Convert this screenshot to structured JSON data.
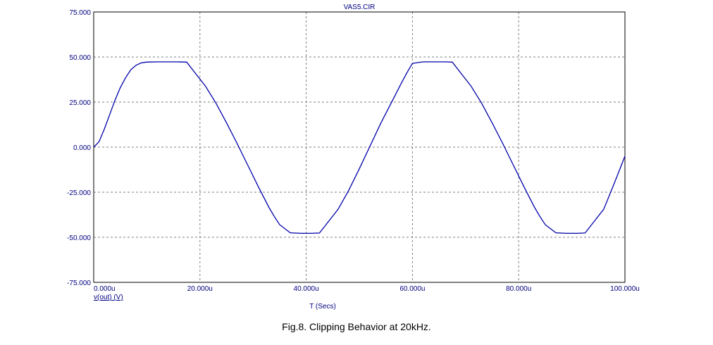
{
  "chart_data": {
    "type": "line",
    "title": "VAS5.CIR",
    "xlabel": "T (Secs)",
    "series_label": "v(out) (V)",
    "xlim": [
      0,
      100
    ],
    "ylim": [
      -75,
      75
    ],
    "x_ticks": [
      0,
      20,
      40,
      60,
      80,
      100
    ],
    "x_tick_labels": [
      "0.000u",
      "20.000u",
      "40.000u",
      "60.000u",
      "80.000u",
      "100.000u"
    ],
    "y_ticks": [
      75,
      50,
      25,
      0,
      -25,
      -50,
      -75
    ],
    "y_tick_labels": [
      "75.000",
      "50.000",
      "25.000",
      "0.000",
      "-25.000",
      "-50.000",
      "-75.000"
    ],
    "grid": true,
    "series": [
      {
        "name": "v(out)",
        "color": "#0000aa",
        "x": [
          0,
          1,
          2,
          3,
          4,
          5,
          6,
          7,
          8,
          9,
          9.5,
          10,
          12,
          14,
          16,
          17.5,
          19,
          21,
          23,
          25,
          27,
          29,
          31,
          33,
          34,
          35,
          37,
          39,
          41,
          42.5,
          44,
          46,
          48,
          50,
          52,
          54,
          56,
          58,
          59,
          60,
          62,
          64,
          66,
          67.5,
          69,
          71,
          73,
          75,
          77,
          79,
          81,
          83,
          84,
          85,
          87,
          89,
          91,
          92.5,
          94,
          96,
          98,
          100
        ],
        "y": [
          0,
          3,
          10,
          18,
          26,
          33,
          38.5,
          43,
          45.5,
          46.8,
          47,
          47.2,
          47.3,
          47.3,
          47.3,
          47.2,
          41.5,
          34,
          24.5,
          13.5,
          2,
          -10,
          -22,
          -33.5,
          -38.5,
          -43,
          -47.5,
          -47.8,
          -47.8,
          -47.6,
          -42,
          -34.5,
          -24,
          -12,
          0.5,
          13,
          24.5,
          36,
          41.5,
          46.5,
          47.3,
          47.3,
          47.3,
          47.2,
          41.5,
          34,
          24.5,
          13.5,
          2,
          -10,
          -22,
          -33.5,
          -38.5,
          -43,
          -47.5,
          -47.8,
          -47.8,
          -47.6,
          -42,
          -34.5,
          -20,
          -5
        ]
      }
    ]
  },
  "caption": "Fig.8. Clipping Behavior at 20kHz."
}
